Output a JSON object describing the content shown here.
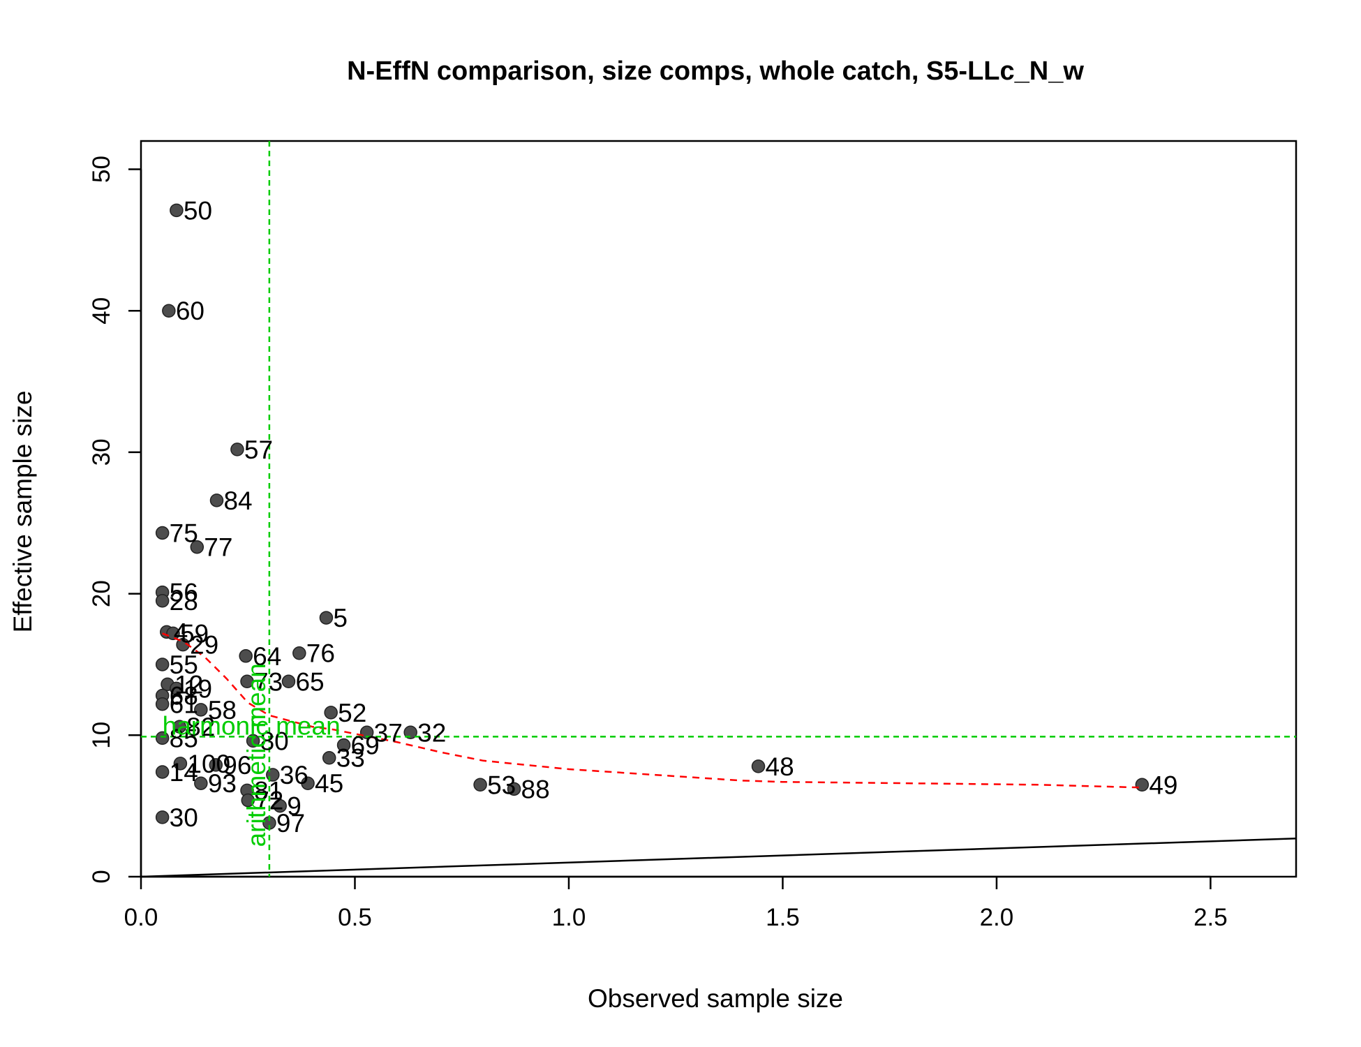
{
  "chart_data": {
    "type": "scatter",
    "title": "N-EffN comparison, size comps, whole catch, S5-LLc_N_w",
    "xlabel": "Observed sample size",
    "ylabel": "Effective sample size",
    "xlim": [
      0,
      2.7
    ],
    "ylim": [
      0,
      52
    ],
    "x_ticks": [
      0.0,
      0.5,
      1.0,
      1.5,
      2.0,
      2.5
    ],
    "x_tick_labels": [
      "0.0",
      "0.5",
      "1.0",
      "1.5",
      "2.0",
      "2.5"
    ],
    "y_ticks": [
      0,
      10,
      20,
      30,
      40,
      50
    ],
    "y_tick_labels": [
      "0",
      "10",
      "20",
      "30",
      "40",
      "50"
    ],
    "grid": false,
    "point_color": "#4d4d4d",
    "points": [
      {
        "label": "50",
        "x": 0.083,
        "y": 47.1
      },
      {
        "label": "60",
        "x": 0.065,
        "y": 40.0
      },
      {
        "label": "57",
        "x": 0.225,
        "y": 30.2
      },
      {
        "label": "84",
        "x": 0.177,
        "y": 26.6
      },
      {
        "label": "75",
        "x": 0.05,
        "y": 24.3
      },
      {
        "label": "77",
        "x": 0.131,
        "y": 23.3
      },
      {
        "label": "56",
        "x": 0.05,
        "y": 20.1
      },
      {
        "label": "28",
        "x": 0.05,
        "y": 19.5
      },
      {
        "label": "5",
        "x": 0.433,
        "y": 18.3
      },
      {
        "label": "4",
        "x": 0.06,
        "y": 17.3
      },
      {
        "label": "59",
        "x": 0.075,
        "y": 17.2
      },
      {
        "label": "29",
        "x": 0.098,
        "y": 16.4
      },
      {
        "label": "76",
        "x": 0.37,
        "y": 15.8
      },
      {
        "label": "64",
        "x": 0.245,
        "y": 15.6
      },
      {
        "label": "55",
        "x": 0.05,
        "y": 15.0
      },
      {
        "label": "73",
        "x": 0.248,
        "y": 13.8
      },
      {
        "label": "65",
        "x": 0.345,
        "y": 13.8
      },
      {
        "label": "12",
        "x": 0.062,
        "y": 13.6
      },
      {
        "label": "19",
        "x": 0.083,
        "y": 13.3
      },
      {
        "label": "68",
        "x": 0.05,
        "y": 12.8
      },
      {
        "label": "61",
        "x": 0.05,
        "y": 12.2
      },
      {
        "label": "58",
        "x": 0.14,
        "y": 11.8
      },
      {
        "label": "52",
        "x": 0.444,
        "y": 11.6
      },
      {
        "label": "37",
        "x": 0.528,
        "y": 10.2
      },
      {
        "label": "32",
        "x": 0.63,
        "y": 10.2
      },
      {
        "label": "82",
        "x": 0.09,
        "y": 10.6
      },
      {
        "label": "85",
        "x": 0.05,
        "y": 9.8
      },
      {
        "label": "80",
        "x": 0.262,
        "y": 9.6
      },
      {
        "label": "69",
        "x": 0.474,
        "y": 9.3
      },
      {
        "label": "33",
        "x": 0.44,
        "y": 8.4
      },
      {
        "label": "100",
        "x": 0.092,
        "y": 8.0
      },
      {
        "label": "96",
        "x": 0.175,
        "y": 7.9
      },
      {
        "label": "48",
        "x": 1.443,
        "y": 7.8
      },
      {
        "label": "14",
        "x": 0.05,
        "y": 7.4
      },
      {
        "label": "36",
        "x": 0.308,
        "y": 7.2
      },
      {
        "label": "93",
        "x": 0.14,
        "y": 6.6
      },
      {
        "label": "45",
        "x": 0.39,
        "y": 6.6
      },
      {
        "label": "53",
        "x": 0.793,
        "y": 6.5
      },
      {
        "label": "49",
        "x": 2.34,
        "y": 6.5
      },
      {
        "label": "88",
        "x": 0.872,
        "y": 6.2
      },
      {
        "label": "81",
        "x": 0.248,
        "y": 6.1
      },
      {
        "label": "72",
        "x": 0.25,
        "y": 5.4
      },
      {
        "label": "9",
        "x": 0.325,
        "y": 5.0
      },
      {
        "label": "30",
        "x": 0.05,
        "y": 4.2
      },
      {
        "label": "97",
        "x": 0.3,
        "y": 3.8
      }
    ],
    "smoother": {
      "color": "#ff0000",
      "style": "dashed",
      "points": [
        [
          0.05,
          17.2
        ],
        [
          0.1,
          16.6
        ],
        [
          0.15,
          15.5
        ],
        [
          0.2,
          14.0
        ],
        [
          0.25,
          12.3
        ],
        [
          0.3,
          11.4
        ],
        [
          0.35,
          11.0
        ],
        [
          0.4,
          10.6
        ],
        [
          0.45,
          10.4
        ],
        [
          0.5,
          10.1
        ],
        [
          0.6,
          9.5
        ],
        [
          0.7,
          8.8
        ],
        [
          0.8,
          8.2
        ],
        [
          0.9,
          7.9
        ],
        [
          1.0,
          7.6
        ],
        [
          1.1,
          7.4
        ],
        [
          1.2,
          7.2
        ],
        [
          1.3,
          7.0
        ],
        [
          1.4,
          6.8
        ],
        [
          1.5,
          6.7
        ],
        [
          1.8,
          6.6
        ],
        [
          2.1,
          6.5
        ],
        [
          2.34,
          6.3
        ]
      ]
    },
    "identity_line": {
      "color": "#000000",
      "from": [
        0,
        0
      ],
      "to": [
        2.7,
        2.7
      ]
    },
    "reference_lines": [
      {
        "orientation": "horizontal",
        "value": 9.9,
        "label": "harmonic mean",
        "color": "#00cc00"
      },
      {
        "orientation": "vertical",
        "value": 0.3,
        "label": "arithmetic mean",
        "color": "#00cc00"
      }
    ]
  }
}
